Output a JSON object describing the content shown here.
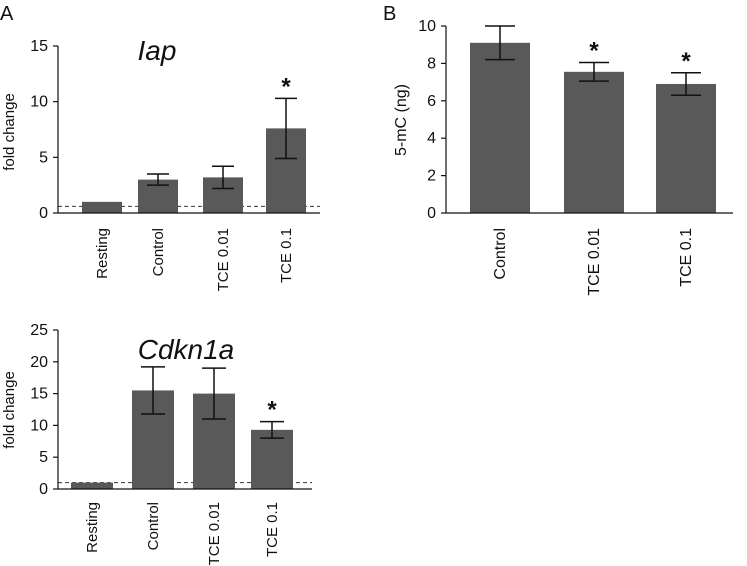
{
  "panels": {
    "a_label": "A",
    "b_label": "B"
  },
  "colors": {
    "bar": "#595959",
    "axis": "#111111",
    "baseline": "#333333"
  },
  "chart_data": [
    {
      "id": "iap",
      "type": "bar",
      "title": "Iap",
      "ylabel": "fold change",
      "xlabel": "",
      "categories": [
        "Resting",
        "Control",
        "TCE 0.01",
        "TCE 0.1"
      ],
      "values": [
        1.0,
        3.0,
        3.2,
        7.6
      ],
      "errors": [
        0.0,
        0.5,
        1.0,
        2.7
      ],
      "significant": [
        "",
        "",
        "",
        "*"
      ],
      "ylim": [
        0,
        15
      ],
      "yticks": [
        "0",
        "5",
        "10",
        "15"
      ],
      "reference_line": 0.6,
      "grid": false,
      "legend": "none"
    },
    {
      "id": "cdkn1a",
      "type": "bar",
      "title": "Cdkn1a",
      "ylabel": "fold change",
      "xlabel": "",
      "categories": [
        "Resting",
        "Control",
        "TCE 0.01",
        "TCE 0.1"
      ],
      "values": [
        1.0,
        15.5,
        15.0,
        9.3
      ],
      "errors": [
        0.0,
        3.7,
        4.0,
        1.3
      ],
      "significant": [
        "",
        "",
        "",
        "*"
      ],
      "ylim": [
        0,
        25
      ],
      "yticks": [
        "0",
        "5",
        "10",
        "15",
        "20",
        "25"
      ],
      "reference_line": 1.0,
      "grid": false,
      "legend": "none"
    },
    {
      "id": "5mc",
      "type": "bar",
      "title": "",
      "ylabel": "5-mC (ng)",
      "xlabel": "",
      "categories": [
        "Control",
        "TCE 0.01",
        "TCE 0.1"
      ],
      "values": [
        9.1,
        7.55,
        6.9
      ],
      "errors": [
        0.9,
        0.5,
        0.6
      ],
      "significant": [
        "",
        "*",
        "*"
      ],
      "ylim": [
        0,
        10
      ],
      "yticks": [
        "0",
        "2",
        "4",
        "6",
        "8",
        "10"
      ],
      "grid": false,
      "legend": "none"
    }
  ]
}
